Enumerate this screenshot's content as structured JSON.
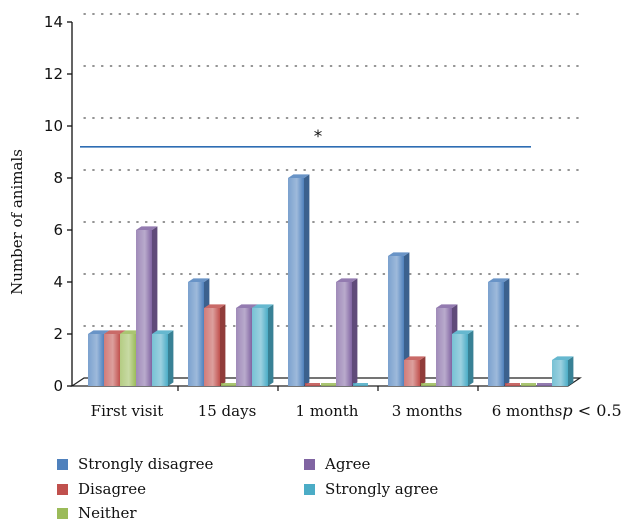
{
  "chart_data": {
    "type": "bar",
    "title": "",
    "xlabel": "",
    "ylabel": "Number of animals",
    "ylim": [
      0,
      14
    ],
    "yticks": [
      0,
      2,
      4,
      6,
      8,
      10,
      12,
      14
    ],
    "categories": [
      "First visit",
      "15 days",
      "1 month",
      "3 months",
      "6 months"
    ],
    "series": [
      {
        "name": "Strongly disagree",
        "color": "#4f81bd",
        "values": [
          2,
          4,
          8,
          5,
          4
        ]
      },
      {
        "name": "Disagree",
        "color": "#c0504d",
        "values": [
          2,
          3,
          0,
          1,
          0
        ]
      },
      {
        "name": "Neither",
        "color": "#9bbb59",
        "values": [
          2,
          0,
          0,
          0,
          0
        ]
      },
      {
        "name": "Agree",
        "color": "#8064a2",
        "values": [
          6,
          3,
          4,
          3,
          0
        ]
      },
      {
        "name": "Strongly agree",
        "color": "#4bacc6",
        "values": [
          2,
          3,
          0,
          2,
          1
        ]
      }
    ],
    "grid": "dotted-horizontal",
    "legend_position": "bottom",
    "annotation": {
      "symbol": "*",
      "value": 9.2
    },
    "pvalue_label": "p < 0.5"
  }
}
